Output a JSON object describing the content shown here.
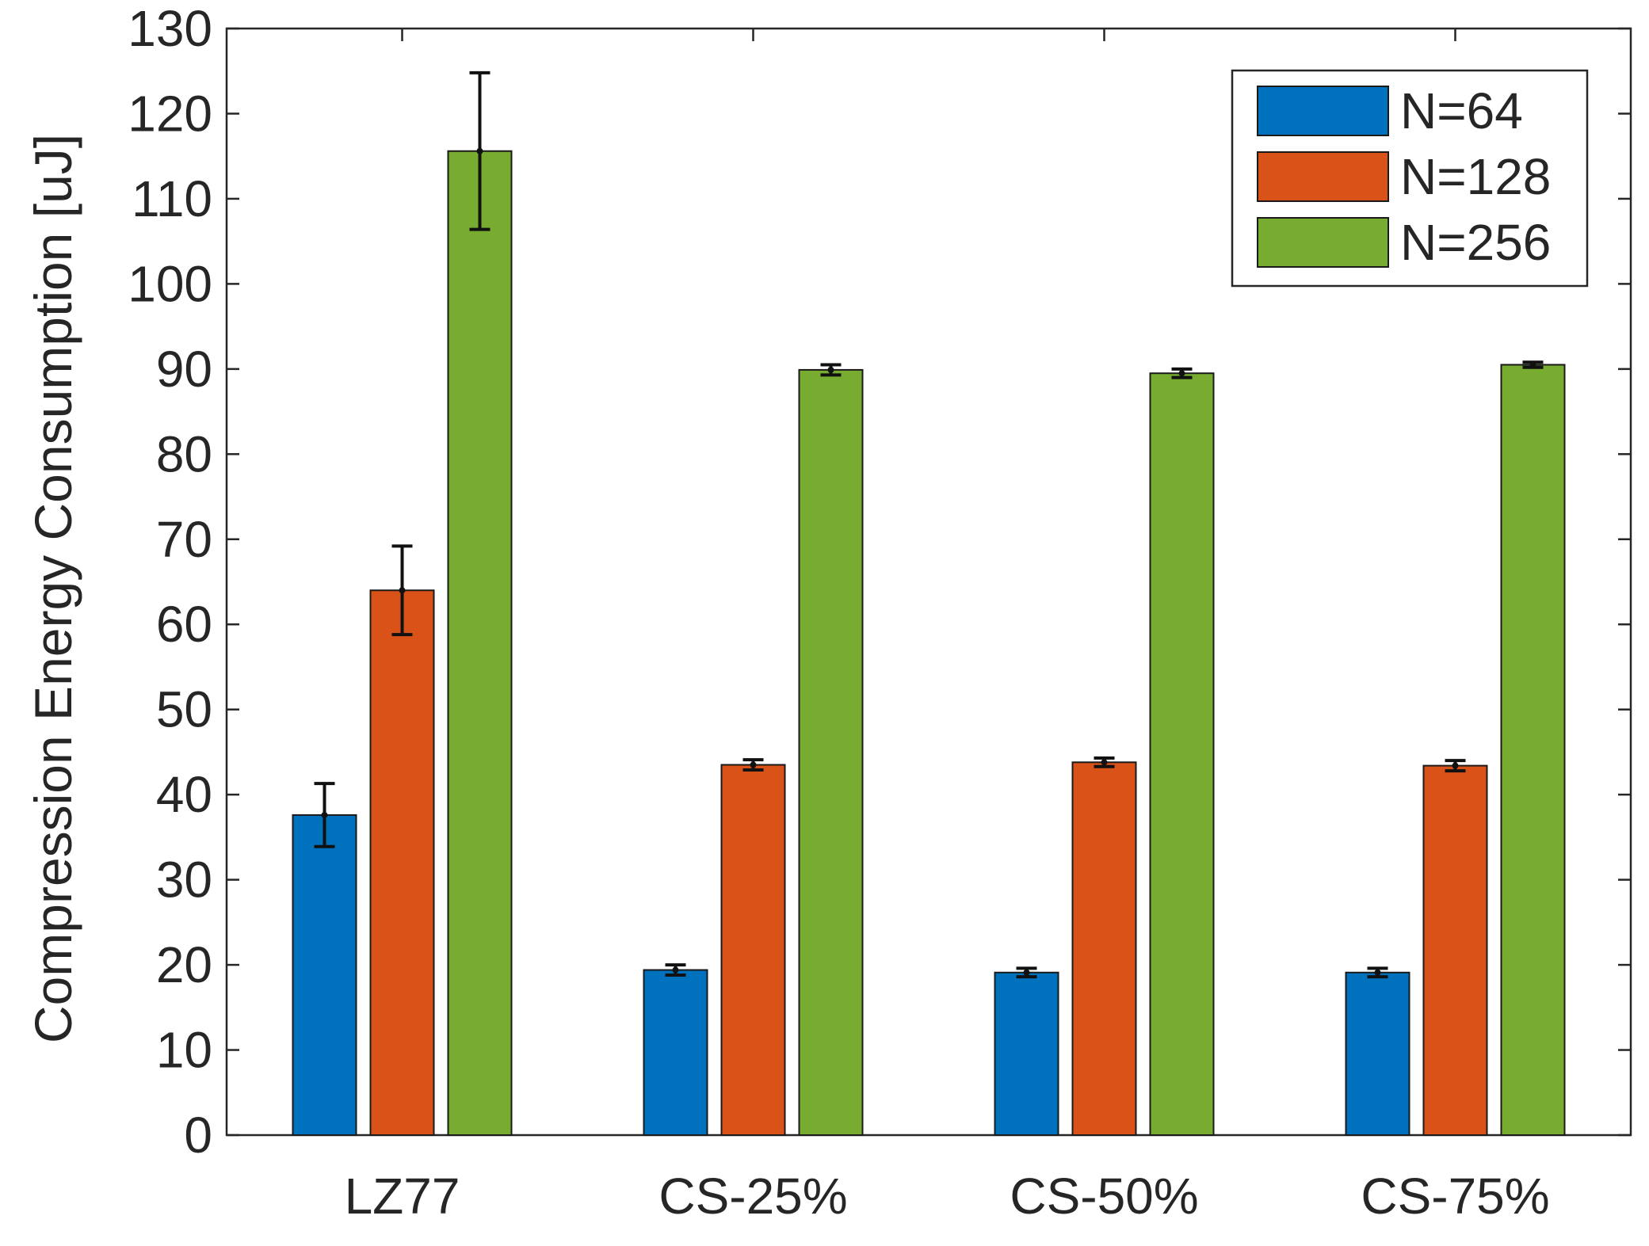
{
  "chart_data": {
    "type": "bar",
    "title": "",
    "xlabel": "",
    "ylabel": "Compression Energy Consumption [uJ]",
    "ylim": [
      0,
      130
    ],
    "yticks": [
      0,
      10,
      20,
      30,
      40,
      50,
      60,
      70,
      80,
      90,
      100,
      110,
      120,
      130
    ],
    "grid": false,
    "legend_position": "top-right",
    "categories": [
      "LZ77",
      "CS-25%",
      "CS-50%",
      "CS-75%"
    ],
    "series": [
      {
        "name": "N=64",
        "color": "#0072BD",
        "values": [
          37.6,
          19.4,
          19.1,
          19.1
        ],
        "errors": [
          3.7,
          0.6,
          0.5,
          0.5
        ]
      },
      {
        "name": "N=128",
        "color": "#D95319",
        "values": [
          64.0,
          43.5,
          43.8,
          43.4
        ],
        "errors": [
          5.2,
          0.6,
          0.5,
          0.6
        ]
      },
      {
        "name": "N=256",
        "color": "#77AC30",
        "values": [
          115.6,
          89.9,
          89.5,
          90.5
        ],
        "errors": [
          9.2,
          0.6,
          0.5,
          0.3
        ]
      }
    ]
  }
}
